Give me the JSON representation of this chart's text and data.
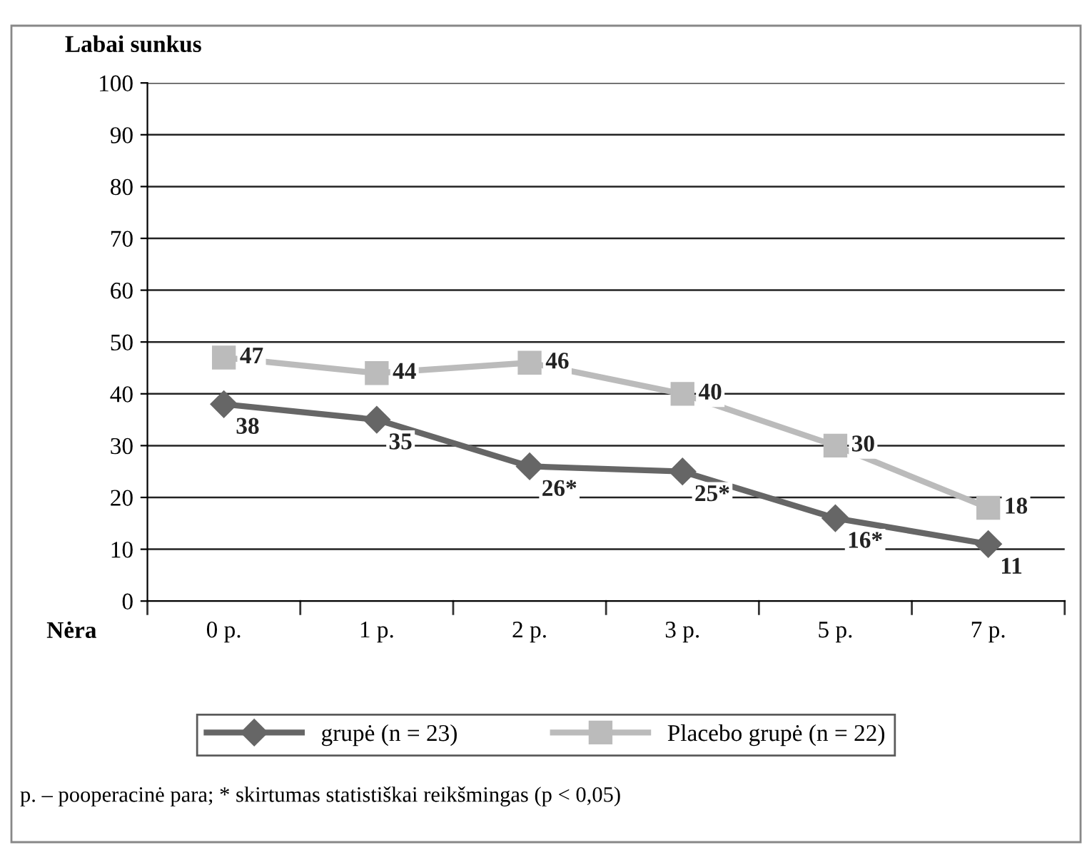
{
  "chart_data": {
    "type": "line",
    "ylabel": "Labai sunkus",
    "categories": [
      "0 p.",
      "1 p.",
      "2 p.",
      "3 p.",
      "5 p.",
      "7 p."
    ],
    "series": [
      {
        "name": "grupė (n = 23)",
        "color": "#666666",
        "marker": "diamond",
        "values": [
          38,
          35,
          26,
          25,
          16,
          11
        ],
        "value_labels": [
          "38",
          "35",
          "26*",
          "25*",
          "16*",
          "11"
        ]
      },
      {
        "name": "Placebo grupė (n = 22)",
        "color": "#bbbbbb",
        "marker": "square",
        "values": [
          47,
          44,
          46,
          40,
          30,
          18
        ],
        "value_labels": [
          "47",
          "44",
          "46",
          "40",
          "30",
          "18"
        ]
      }
    ],
    "ylim": [
      0,
      100
    ],
    "yticks": [
      0,
      10,
      20,
      30,
      40,
      50,
      60,
      70,
      80,
      90,
      100
    ],
    "grid": "y",
    "legend": "bottom",
    "line_style": "solid",
    "annotations": [
      "Nėra",
      "p. – pooperacinė para; * skirtumas statistiškai reikšmingas (p < 0,05)"
    ]
  }
}
